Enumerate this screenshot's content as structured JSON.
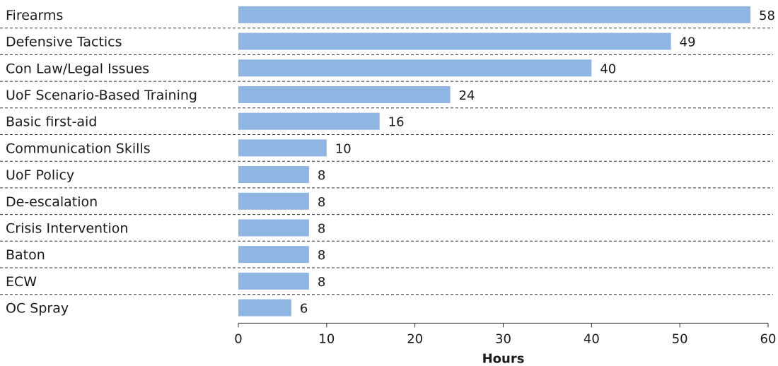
{
  "chart_data": {
    "type": "bar",
    "orientation": "horizontal",
    "categories": [
      "Firearms",
      "Defensive Tactics",
      "Con Law/Legal Issues",
      "UoF Scenario-Based Training",
      "Basic first-aid",
      "Communication Skills",
      "UoF Policy",
      "De-escalation",
      "Crisis Intervention",
      "Baton",
      "ECW",
      "OC Spray"
    ],
    "values": [
      58,
      49,
      40,
      24,
      16,
      10,
      8,
      8,
      8,
      8,
      8,
      6
    ],
    "value_labels": [
      "58",
      "49",
      "40",
      "24",
      "16",
      "10",
      "8",
      "8",
      "8",
      "8",
      "8",
      "6"
    ],
    "xlabel": "Hours",
    "ylabel": "",
    "title": "",
    "xlim": [
      0,
      60
    ],
    "xticks": [
      0,
      10,
      20,
      30,
      40,
      50,
      60
    ],
    "grid": false,
    "legend": "none",
    "bar_color": "#8fb5e2",
    "divider_style": "dashed"
  }
}
